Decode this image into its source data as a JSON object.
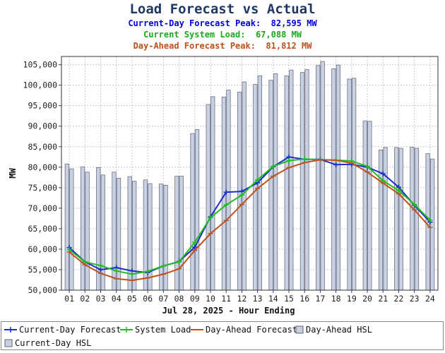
{
  "header": {
    "title": "Load Forecast vs Actual",
    "peaks": [
      {
        "label": "Current-Day Forecast Peak:",
        "value": "82,595 MW",
        "color": "#0000dd"
      },
      {
        "label": "Current System Load:",
        "value": "67,088 MW",
        "color": "#1aaa1a"
      },
      {
        "label": "Day-Ahead Forecast Peak:",
        "value": "81,812 MW",
        "color": "#c0501a"
      }
    ]
  },
  "chart_data": {
    "type": "bar",
    "xlabel": "Jul 28, 2025 - Hour Ending",
    "ylabel": "MW",
    "ylim": [
      50000,
      107000
    ],
    "yticks": [
      50000,
      55000,
      60000,
      65000,
      70000,
      75000,
      80000,
      85000,
      90000,
      95000,
      100000,
      105000
    ],
    "ytick_labels": [
      "50,000",
      "55,000",
      "60,000",
      "65,000",
      "70,000",
      "75,000",
      "80,000",
      "85,000",
      "90,000",
      "95,000",
      "100,000",
      "105,000"
    ],
    "categories": [
      "01",
      "02",
      "03",
      "04",
      "05",
      "06",
      "07",
      "08",
      "09",
      "10",
      "11",
      "12",
      "13",
      "14",
      "15",
      "16",
      "17",
      "18",
      "19",
      "20",
      "21",
      "22",
      "23",
      "24"
    ],
    "grid": true,
    "legend_position": "bottom",
    "series": [
      {
        "name": "Day-Ahead HSL",
        "kind": "bar",
        "color": "#c8d0e4",
        "values": [
          80800,
          80100,
          79900,
          78800,
          77700,
          76900,
          75900,
          77800,
          88200,
          95300,
          97100,
          98300,
          100200,
          101200,
          102300,
          103100,
          104800,
          104000,
          101500,
          91300,
          84200,
          84800,
          84900,
          83300
        ]
      },
      {
        "name": "Current-Day HSL",
        "kind": "bar",
        "color": "#c8d0e4",
        "values": [
          79600,
          78800,
          78100,
          77300,
          76600,
          76000,
          75600,
          77800,
          89200,
          97200,
          98800,
          100800,
          102300,
          102800,
          103700,
          103800,
          105800,
          104900,
          101700,
          91200,
          84800,
          84600,
          84600,
          82000
        ]
      },
      {
        "name": "Current-Day Forecast",
        "kind": "line",
        "color": "#1a2ecc",
        "values": [
          60400,
          56900,
          55000,
          55500,
          54700,
          54300,
          55900,
          57000,
          60500,
          67900,
          73900,
          74100,
          76200,
          80100,
          82500,
          81900,
          81900,
          80600,
          80700,
          80000,
          78400,
          75100,
          70700,
          66600
        ]
      },
      {
        "name": "System Load",
        "kind": "line",
        "color": "#22bb22",
        "values": [
          59900,
          56900,
          56000,
          54700,
          53900,
          54600,
          55900,
          56900,
          61700,
          67700,
          70800,
          73200,
          76900,
          80200,
          81600,
          82000,
          81800,
          81700,
          81500,
          80200,
          76700,
          74300,
          70900,
          67088
        ]
      },
      {
        "name": "Day-Ahead Forecast",
        "kind": "line",
        "color": "#c0501a",
        "values": [
          59300,
          56200,
          54100,
          52800,
          52400,
          53000,
          53900,
          55200,
          59700,
          63800,
          67000,
          70900,
          74800,
          77800,
          79900,
          81100,
          81812,
          81700,
          81000,
          78800,
          76100,
          73500,
          69600,
          65300
        ]
      }
    ]
  },
  "legend": {
    "items": [
      {
        "label": "Current-Day Forecast"
      },
      {
        "label": "System Load"
      },
      {
        "label": "Day-Ahead Forecast"
      },
      {
        "label": "Day-Ahead HSL"
      },
      {
        "label": "Current-Day HSL"
      }
    ]
  }
}
